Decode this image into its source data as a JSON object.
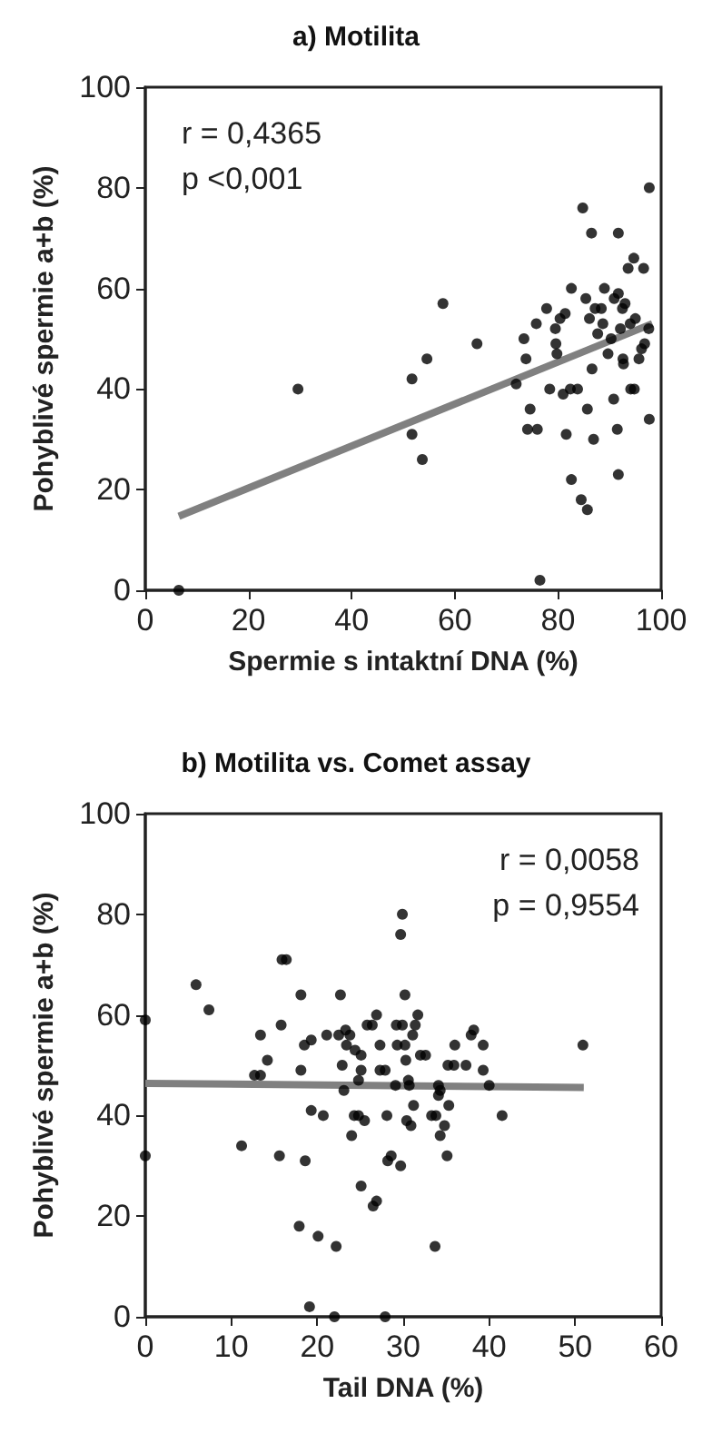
{
  "chart_data": [
    {
      "type": "scatter",
      "title": "a) Motilita",
      "xlabel": "Spermie s intaktní DNA (%)",
      "ylabel": "Pohyblivé spermie a+b (%)",
      "annotations": [
        "r = 0,4365",
        "p <0,001"
      ],
      "xlim": [
        0,
        100
      ],
      "xticks": [
        0,
        20,
        40,
        60,
        80,
        100
      ],
      "ylim": [
        0,
        100
      ],
      "yticks": [
        0,
        20,
        40,
        60,
        80,
        100
      ],
      "grid": false,
      "marker": "circle",
      "series": [
        {
          "color": "#000000",
          "x": [
            6.5,
            29.6,
            51.7,
            51.7,
            54.6,
            53.7,
            57.7,
            64.3,
            71.9,
            73.4,
            73.8,
            74.1,
            74.6,
            75.8,
            76,
            76.5,
            77.8,
            78.4,
            79.5,
            79.6,
            79.8,
            80.4,
            81,
            81.4,
            81.6,
            82.4,
            82.6,
            82.6,
            83.8,
            84.5,
            84.8,
            85.4,
            85.7,
            85.7,
            86.1,
            86.5,
            86.6,
            86.9,
            87.2,
            87.7,
            88.4,
            88.7,
            89,
            89.7,
            90.3,
            90.8,
            90.9,
            91.5,
            91.7,
            91.7,
            91.7,
            92.1,
            92.5,
            92.6,
            92.7,
            93,
            93.6,
            94,
            94.1,
            94.7,
            94.8,
            95,
            95.7,
            96.2,
            96.6,
            96.8,
            97.6,
            97.7,
            97.7
          ],
          "values": [
            0,
            40,
            42,
            31,
            46,
            26,
            57,
            49,
            41,
            50,
            46,
            32,
            36,
            53,
            32,
            2,
            56,
            40,
            52,
            49,
            47,
            54,
            39,
            55,
            31,
            40,
            60,
            22,
            40,
            18,
            76,
            58,
            36,
            16,
            54,
            71,
            44,
            30,
            56,
            51,
            56,
            53,
            60,
            47,
            50,
            38,
            58,
            32,
            23,
            71,
            59,
            52,
            56,
            46,
            45,
            57,
            64,
            53,
            40,
            66,
            40,
            54,
            46,
            48,
            64,
            49,
            52,
            80,
            34
          ]
        },
        {
          "type": "line",
          "color": "#808080",
          "marker": "none",
          "line_style": "solid",
          "x": [
            6.5,
            98.3
          ],
          "values": [
            14.7,
            53
          ]
        }
      ]
    },
    {
      "type": "scatter",
      "title": "b) Motilita vs. Comet assay",
      "xlabel": "Tail DNA (%)",
      "ylabel": "Pohyblivé spermie a+b (%)",
      "annotations": [
        "r = 0,0058",
        "p = 0,9554"
      ],
      "xlim": [
        0,
        60
      ],
      "xticks": [
        0,
        10,
        20,
        30,
        40,
        50,
        60
      ],
      "ylim": [
        0,
        100
      ],
      "yticks": [
        0,
        20,
        40,
        60,
        80,
        100
      ],
      "grid": false,
      "marker": "circle",
      "series": [
        {
          "color": "#000000",
          "x": [
            0,
            0,
            5.9,
            7.4,
            11.2,
            12.7,
            13.4,
            13.4,
            14.2,
            15.6,
            15.8,
            15.9,
            16.4,
            17.9,
            18.1,
            18.1,
            18.5,
            18.6,
            19.1,
            19.3,
            19.3,
            20.1,
            20.7,
            21.1,
            22,
            22.2,
            22.5,
            22.7,
            22.9,
            23.1,
            23.3,
            23.4,
            23.8,
            24,
            24.3,
            24.4,
            24.8,
            24.8,
            25.1,
            25.1,
            25.1,
            25.5,
            25.8,
            26.4,
            26.5,
            26.9,
            26.9,
            27.3,
            27.3,
            27.9,
            27.9,
            28.1,
            28.2,
            28.6,
            29.1,
            29.2,
            29.3,
            29.7,
            29.7,
            29.9,
            29.9,
            30.2,
            30.2,
            30.3,
            30.4,
            30.6,
            30.7,
            30.9,
            31.1,
            31.2,
            31.4,
            31.7,
            32,
            32.6,
            33.3,
            33.7,
            33.8,
            34.1,
            34.1,
            34.3,
            34.3,
            34.8,
            35.1,
            35.3,
            35.2,
            36,
            35.9,
            37.3,
            37.9,
            38.2,
            39.3,
            39.3,
            40,
            41.5,
            50.9
          ],
          "values": [
            59,
            32,
            66,
            61,
            34,
            48,
            48,
            56,
            51,
            32,
            58,
            71,
            71,
            18,
            64,
            49,
            54,
            31,
            2,
            55,
            41,
            16,
            40,
            56,
            0,
            14,
            56,
            64,
            50,
            45,
            57,
            54,
            56,
            36,
            40,
            53,
            40,
            47,
            26,
            52,
            49,
            39,
            58,
            58,
            22,
            23,
            60,
            54,
            49,
            0,
            49,
            40,
            31,
            32,
            46,
            58,
            54,
            76,
            30,
            80,
            58,
            54,
            64,
            51,
            39,
            47,
            46,
            38,
            56,
            42,
            58,
            60,
            52,
            52,
            40,
            14,
            40,
            46,
            44,
            45,
            36,
            38,
            32,
            42,
            50,
            54,
            50,
            50,
            56,
            57,
            54,
            49,
            46,
            40,
            54
          ]
        },
        {
          "type": "line",
          "color": "#808080",
          "marker": "none",
          "line_style": "solid",
          "x": [
            0,
            51
          ],
          "values": [
            46.4,
            45.6
          ]
        }
      ]
    }
  ]
}
